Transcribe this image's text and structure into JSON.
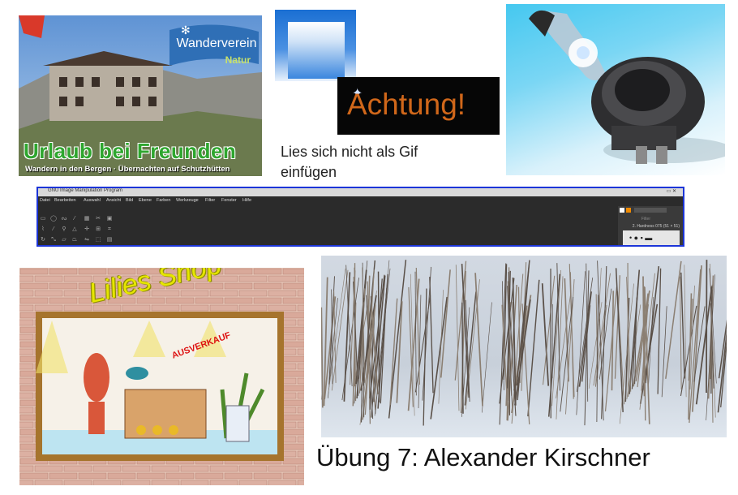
{
  "tiles": {
    "hut": {
      "badge_title": "Wanderverein",
      "badge_sub": "Natur",
      "headline": "Urlaub bei Freunden",
      "tagline": "Wandern in den Bergen · Übernachten auf Schutzhütten"
    },
    "achtung": {
      "text": "Achtung!"
    },
    "gif_note": "Lies sich nicht als Gif einfügen",
    "gimp": {
      "title": "GNU Image Manipulation Program",
      "menu": [
        "Datei",
        "Bearbeiten",
        "Auswahl",
        "Ansicht",
        "Bild",
        "Ebene",
        "Farben",
        "Werkzeuge",
        "Filter",
        "Fenster",
        "Hilfe"
      ],
      "filter_placeholder": "Filter",
      "brush_label": "2. Hardness 075 (51 × 51)"
    },
    "shop": {
      "title": "Lilies Shop",
      "sale": "AUSVERKAUF"
    }
  },
  "caption": "Übung 7: Alexander Kirschner",
  "colors": {
    "gimp_border": "#1c35d8",
    "achtung_text": "#d0671a",
    "headline_green": "#2ea62e",
    "shop_title": "#e6e600"
  }
}
